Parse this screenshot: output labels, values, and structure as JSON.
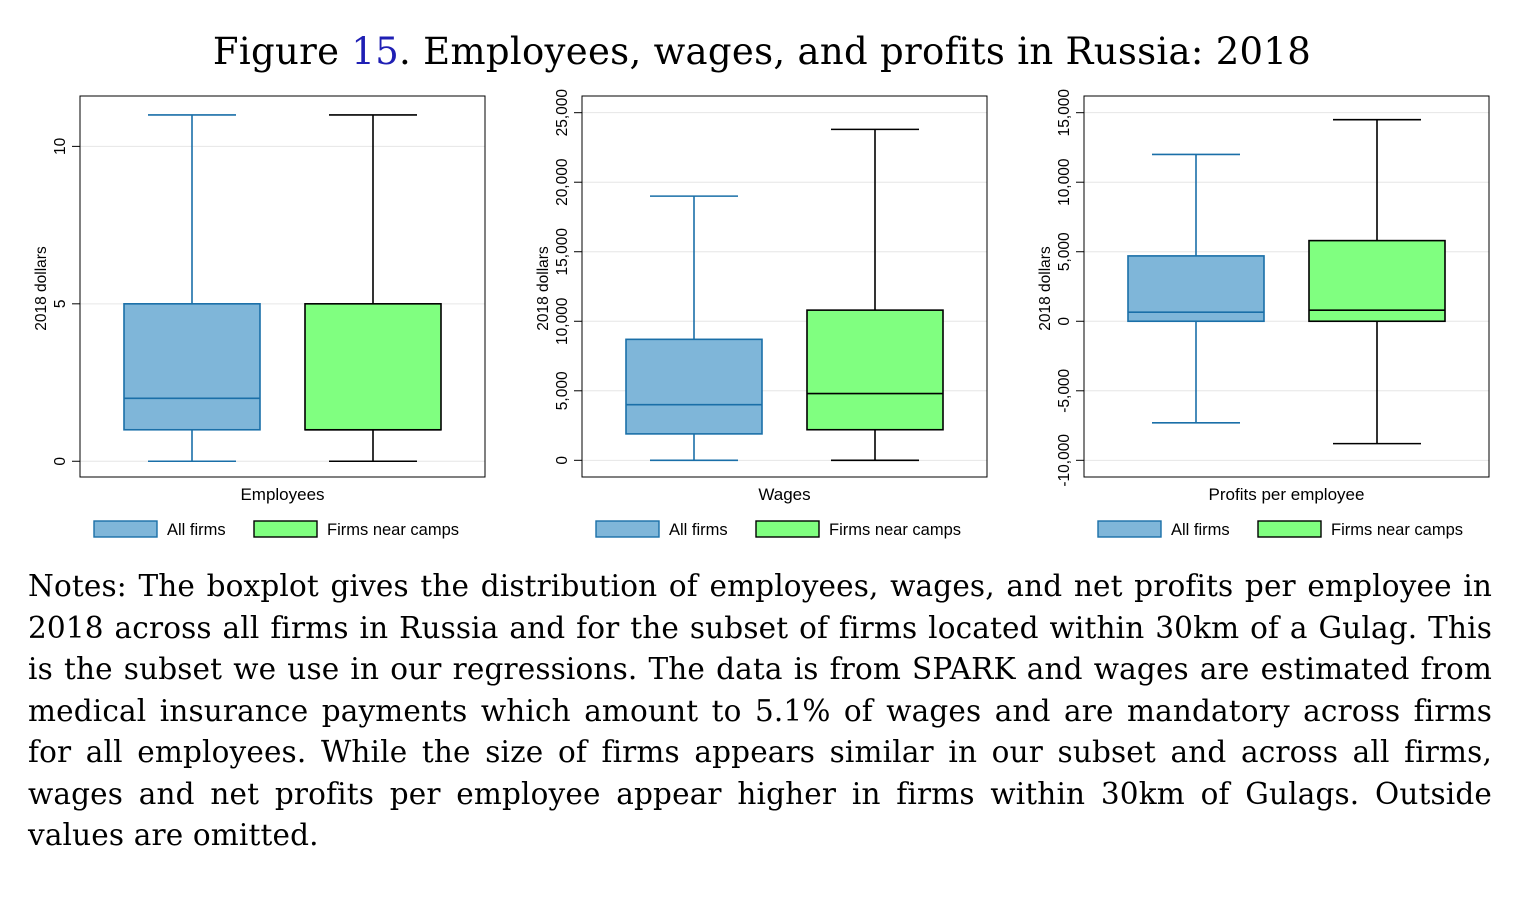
{
  "figure": {
    "label": "Figure",
    "number": "15",
    "title": ". Employees, wages, and profits in Russia: 2018"
  },
  "notes": "Notes: The boxplot gives the distribution of employees, wages, and net profits per employee in 2018 across all firms in Russia and for the subset of firms located within 30km of a Gulag. This is the subset we use in our regressions. The data is from SPARK and wages are estimated from medical insurance payments which amount to 5.1% of wages and are mandatory across firms for all employees. While the size of firms appears similar in our subset and across all firms, wages and net profits per employee appear higher in firms within 30km of Gulags. Outside values are omitted.",
  "colors": {
    "all_firms": "#7fb6d9",
    "all_firms_line": "#1a6fa8",
    "near_camps": "#80ff80",
    "near_camps_line": "#000000",
    "grid": "#e6e6e6"
  },
  "chart_data": [
    {
      "type": "boxplot",
      "xlabel": "Employees",
      "ylabel": "2018 dollars",
      "ylim": [
        -0.5,
        11.6
      ],
      "ticks": [
        0,
        5,
        10
      ],
      "tick_labels": [
        "0",
        "5",
        "10"
      ],
      "legend": [
        "All firms",
        "Firms near camps"
      ],
      "series": [
        {
          "name": "All firms",
          "whisker_low": 0,
          "q1": 1,
          "median": 2,
          "q3": 5,
          "whisker_high": 11
        },
        {
          "name": "Firms near camps",
          "whisker_low": 0,
          "q1": 1,
          "median": 1,
          "q3": 5,
          "whisker_high": 11
        }
      ]
    },
    {
      "type": "boxplot",
      "xlabel": "Wages",
      "ylabel": "2018 dollars",
      "ylim": [
        -1200,
        26200
      ],
      "ticks": [
        0,
        5000,
        10000,
        15000,
        20000,
        25000
      ],
      "tick_labels": [
        "0",
        "5,000",
        "10,000",
        "15,000",
        "20,000",
        "25,000"
      ],
      "legend": [
        "All firms",
        "Firms near camps"
      ],
      "series": [
        {
          "name": "All firms",
          "whisker_low": 0,
          "q1": 1900,
          "median": 4000,
          "q3": 8700,
          "whisker_high": 19000
        },
        {
          "name": "Firms near camps",
          "whisker_low": 0,
          "q1": 2200,
          "median": 4800,
          "q3": 10800,
          "whisker_high": 23800
        }
      ]
    },
    {
      "type": "boxplot",
      "xlabel": "Profits per employee",
      "ylabel": "2018 dollars",
      "ylim": [
        -11200,
        16200
      ],
      "ticks": [
        -10000,
        -5000,
        0,
        5000,
        10000,
        15000
      ],
      "tick_labels": [
        "-10,000",
        "-5,000",
        "0",
        "5,000",
        "10,000",
        "15,000"
      ],
      "legend": [
        "All firms",
        "Firms near camps"
      ],
      "series": [
        {
          "name": "All firms",
          "whisker_low": -7300,
          "q1": 0,
          "median": 650,
          "q3": 4700,
          "whisker_high": 12000
        },
        {
          "name": "Firms near camps",
          "whisker_low": -8800,
          "q1": 0,
          "median": 800,
          "q3": 5800,
          "whisker_high": 14500
        }
      ]
    }
  ]
}
